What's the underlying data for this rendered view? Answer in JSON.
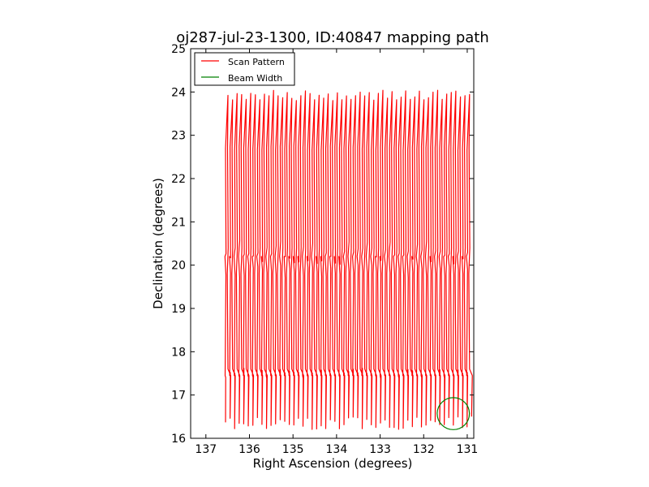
{
  "chart_data": {
    "type": "line",
    "title": "oj287-jul-23-1300, ID:40847 mapping path",
    "xlabel": "Right Ascension (degrees)",
    "ylabel": "Declination (degrees)",
    "xlim": [
      137.35,
      130.85
    ],
    "ylim": [
      16,
      25
    ],
    "x_reversed": true,
    "xticks": [
      137,
      136,
      135,
      134,
      133,
      132,
      131
    ],
    "yticks": [
      16,
      17,
      18,
      19,
      20,
      21,
      22,
      23,
      24,
      25
    ],
    "grid": false,
    "legend_position": "upper-left",
    "series": [
      {
        "name": "Scan Pattern",
        "color": "#ff0000",
        "pattern": "raster-zigzag",
        "x_range": [
          136.55,
          130.9
        ],
        "y_range": [
          16.2,
          24.2
        ],
        "sweep_count": 54,
        "dense_declinations": [
          17.5,
          20.0,
          22.7
        ]
      },
      {
        "name": "Beam Width",
        "color": "#008000",
        "shape": "circle",
        "center": [
          131.32,
          16.57
        ],
        "radius_deg": 0.37
      }
    ]
  }
}
